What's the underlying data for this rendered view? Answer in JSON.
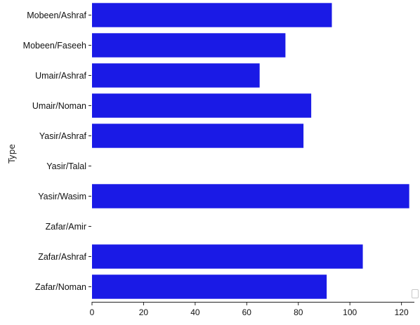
{
  "chart_data": {
    "type": "bar",
    "orientation": "horizontal",
    "categories": [
      "Mobeen/Ashraf",
      "Mobeen/Faseeh",
      "Umair/Ashraf",
      "Umair/Noman",
      "Yasir/Ashraf",
      "Yasir/Talal",
      "Yasir/Wasim",
      "Zafar/Amir",
      "Zafar/Ashraf",
      "Zafar/Noman"
    ],
    "values": [
      93,
      75,
      65,
      85,
      82,
      0,
      123,
      0,
      105,
      91
    ],
    "title": "",
    "xlabel": "",
    "ylabel": "Type",
    "xlim": [
      0,
      125
    ],
    "xticks": [
      0,
      20,
      40,
      60,
      80,
      100,
      120
    ],
    "bar_color": "#1a1ae6",
    "grid": false,
    "legend": "none"
  }
}
